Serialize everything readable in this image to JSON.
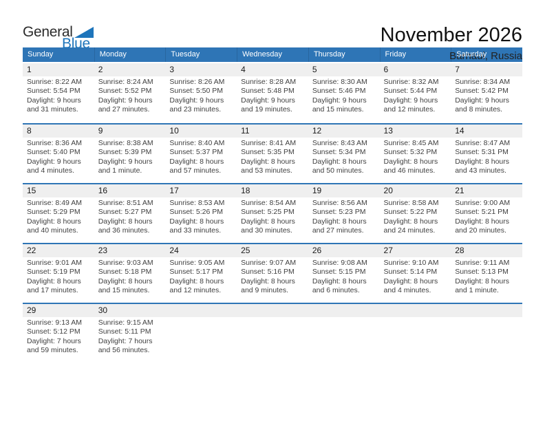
{
  "logo": {
    "text_black": "General",
    "text_blue": "Blue"
  },
  "header": {
    "title": "November 2026",
    "location": "Barnaul, Russia"
  },
  "weekdays": [
    "Sunday",
    "Monday",
    "Tuesday",
    "Wednesday",
    "Thursday",
    "Friday",
    "Saturday"
  ],
  "colors": {
    "header_bg": "#2E75B6",
    "separator": "#2E75B6",
    "band_bg": "#EFEFEF",
    "logo_blue": "#1E75BB",
    "body_text": "#3F3F3F",
    "date_text": "#1A1A1A"
  },
  "weeks": [
    [
      {
        "day": "1",
        "lines": [
          "Sunrise: 8:22 AM",
          "Sunset: 5:54 PM",
          "Daylight: 9 hours",
          "and 31 minutes."
        ]
      },
      {
        "day": "2",
        "lines": [
          "Sunrise: 8:24 AM",
          "Sunset: 5:52 PM",
          "Daylight: 9 hours",
          "and 27 minutes."
        ]
      },
      {
        "day": "3",
        "lines": [
          "Sunrise: 8:26 AM",
          "Sunset: 5:50 PM",
          "Daylight: 9 hours",
          "and 23 minutes."
        ]
      },
      {
        "day": "4",
        "lines": [
          "Sunrise: 8:28 AM",
          "Sunset: 5:48 PM",
          "Daylight: 9 hours",
          "and 19 minutes."
        ]
      },
      {
        "day": "5",
        "lines": [
          "Sunrise: 8:30 AM",
          "Sunset: 5:46 PM",
          "Daylight: 9 hours",
          "and 15 minutes."
        ]
      },
      {
        "day": "6",
        "lines": [
          "Sunrise: 8:32 AM",
          "Sunset: 5:44 PM",
          "Daylight: 9 hours",
          "and 12 minutes."
        ]
      },
      {
        "day": "7",
        "lines": [
          "Sunrise: 8:34 AM",
          "Sunset: 5:42 PM",
          "Daylight: 9 hours",
          "and 8 minutes."
        ]
      }
    ],
    [
      {
        "day": "8",
        "lines": [
          "Sunrise: 8:36 AM",
          "Sunset: 5:40 PM",
          "Daylight: 9 hours",
          "and 4 minutes."
        ]
      },
      {
        "day": "9",
        "lines": [
          "Sunrise: 8:38 AM",
          "Sunset: 5:39 PM",
          "Daylight: 9 hours",
          "and 1 minute."
        ]
      },
      {
        "day": "10",
        "lines": [
          "Sunrise: 8:40 AM",
          "Sunset: 5:37 PM",
          "Daylight: 8 hours",
          "and 57 minutes."
        ]
      },
      {
        "day": "11",
        "lines": [
          "Sunrise: 8:41 AM",
          "Sunset: 5:35 PM",
          "Daylight: 8 hours",
          "and 53 minutes."
        ]
      },
      {
        "day": "12",
        "lines": [
          "Sunrise: 8:43 AM",
          "Sunset: 5:34 PM",
          "Daylight: 8 hours",
          "and 50 minutes."
        ]
      },
      {
        "day": "13",
        "lines": [
          "Sunrise: 8:45 AM",
          "Sunset: 5:32 PM",
          "Daylight: 8 hours",
          "and 46 minutes."
        ]
      },
      {
        "day": "14",
        "lines": [
          "Sunrise: 8:47 AM",
          "Sunset: 5:31 PM",
          "Daylight: 8 hours",
          "and 43 minutes."
        ]
      }
    ],
    [
      {
        "day": "15",
        "lines": [
          "Sunrise: 8:49 AM",
          "Sunset: 5:29 PM",
          "Daylight: 8 hours",
          "and 40 minutes."
        ]
      },
      {
        "day": "16",
        "lines": [
          "Sunrise: 8:51 AM",
          "Sunset: 5:27 PM",
          "Daylight: 8 hours",
          "and 36 minutes."
        ]
      },
      {
        "day": "17",
        "lines": [
          "Sunrise: 8:53 AM",
          "Sunset: 5:26 PM",
          "Daylight: 8 hours",
          "and 33 minutes."
        ]
      },
      {
        "day": "18",
        "lines": [
          "Sunrise: 8:54 AM",
          "Sunset: 5:25 PM",
          "Daylight: 8 hours",
          "and 30 minutes."
        ]
      },
      {
        "day": "19",
        "lines": [
          "Sunrise: 8:56 AM",
          "Sunset: 5:23 PM",
          "Daylight: 8 hours",
          "and 27 minutes."
        ]
      },
      {
        "day": "20",
        "lines": [
          "Sunrise: 8:58 AM",
          "Sunset: 5:22 PM",
          "Daylight: 8 hours",
          "and 24 minutes."
        ]
      },
      {
        "day": "21",
        "lines": [
          "Sunrise: 9:00 AM",
          "Sunset: 5:21 PM",
          "Daylight: 8 hours",
          "and 20 minutes."
        ]
      }
    ],
    [
      {
        "day": "22",
        "lines": [
          "Sunrise: 9:01 AM",
          "Sunset: 5:19 PM",
          "Daylight: 8 hours",
          "and 17 minutes."
        ]
      },
      {
        "day": "23",
        "lines": [
          "Sunrise: 9:03 AM",
          "Sunset: 5:18 PM",
          "Daylight: 8 hours",
          "and 15 minutes."
        ]
      },
      {
        "day": "24",
        "lines": [
          "Sunrise: 9:05 AM",
          "Sunset: 5:17 PM",
          "Daylight: 8 hours",
          "and 12 minutes."
        ]
      },
      {
        "day": "25",
        "lines": [
          "Sunrise: 9:07 AM",
          "Sunset: 5:16 PM",
          "Daylight: 8 hours",
          "and 9 minutes."
        ]
      },
      {
        "day": "26",
        "lines": [
          "Sunrise: 9:08 AM",
          "Sunset: 5:15 PM",
          "Daylight: 8 hours",
          "and 6 minutes."
        ]
      },
      {
        "day": "27",
        "lines": [
          "Sunrise: 9:10 AM",
          "Sunset: 5:14 PM",
          "Daylight: 8 hours",
          "and 4 minutes."
        ]
      },
      {
        "day": "28",
        "lines": [
          "Sunrise: 9:11 AM",
          "Sunset: 5:13 PM",
          "Daylight: 8 hours",
          "and 1 minute."
        ]
      }
    ],
    [
      {
        "day": "29",
        "lines": [
          "Sunrise: 9:13 AM",
          "Sunset: 5:12 PM",
          "Daylight: 7 hours",
          "and 59 minutes."
        ]
      },
      {
        "day": "30",
        "lines": [
          "Sunrise: 9:15 AM",
          "Sunset: 5:11 PM",
          "Daylight: 7 hours",
          "and 56 minutes."
        ]
      },
      null,
      null,
      null,
      null,
      null
    ]
  ]
}
